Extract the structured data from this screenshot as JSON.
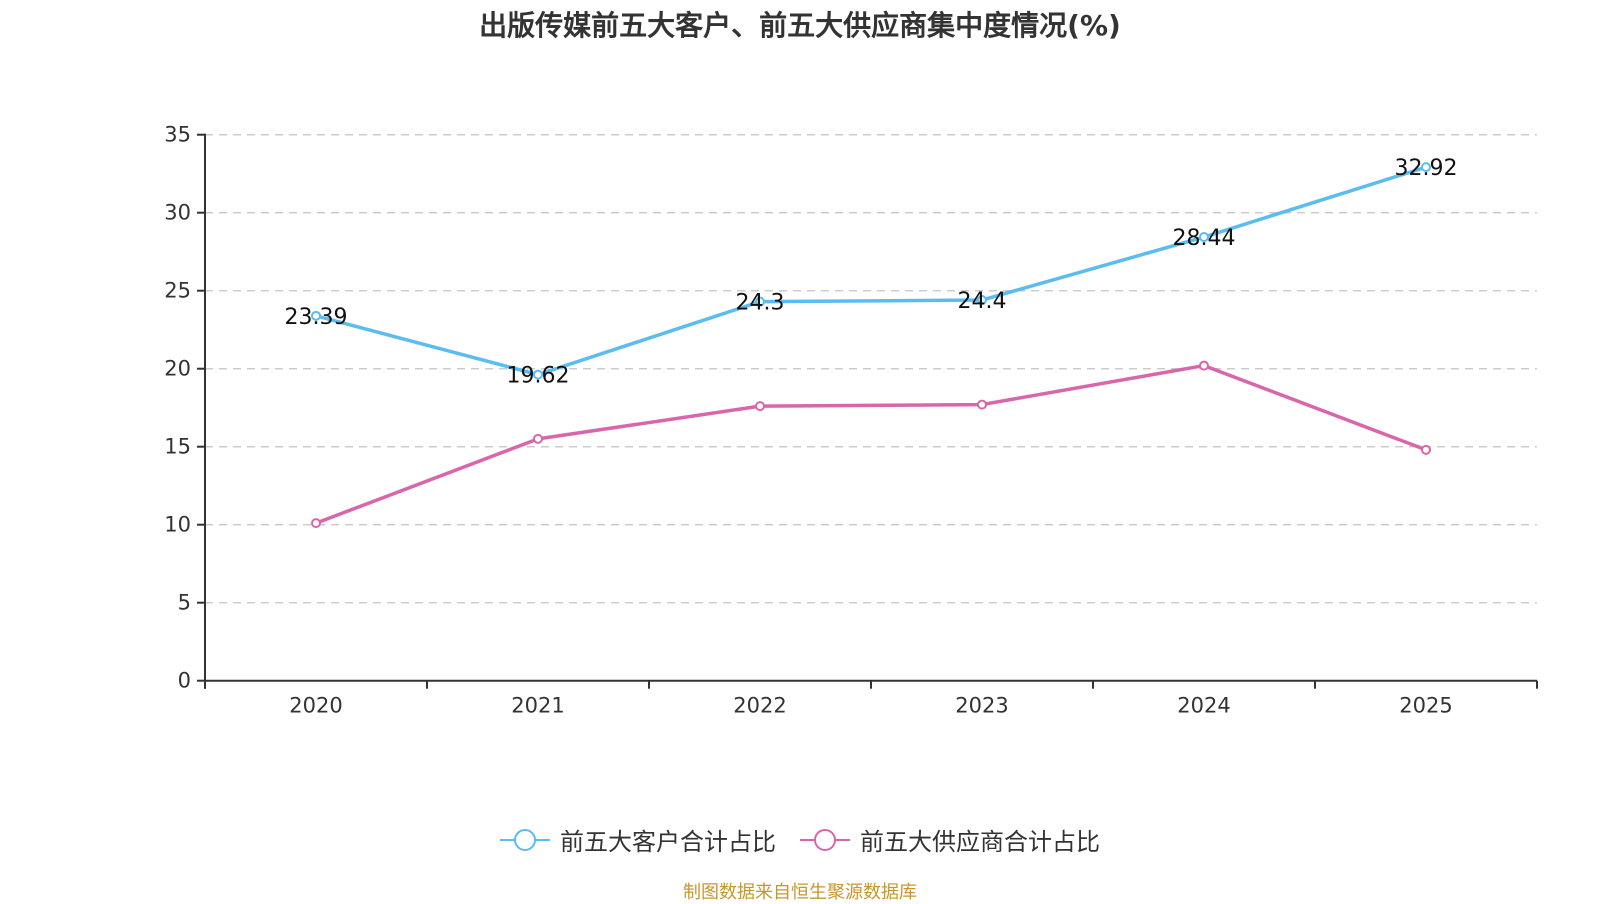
{
  "title": "出版传媒前五大客户、前五大供应商集中度情况(%)",
  "source": "制图数据来自恒生聚源数据库",
  "legend": [
    {
      "label": "前五大客户合计占比",
      "color": "#5bbcf0",
      "icon": "circle-line-icon"
    },
    {
      "label": "前五大供应商合计占比",
      "color": "#d966ab",
      "icon": "circle-line-icon"
    }
  ],
  "chart_data": {
    "type": "line",
    "title": "出版传媒前五大客户、前五大供应商集中度情况(%)",
    "xlabel": "",
    "ylabel": "",
    "categories": [
      "2020",
      "2021",
      "2022",
      "2023",
      "2024",
      "2025"
    ],
    "ylim": [
      0,
      35
    ],
    "yticks": [
      0,
      5,
      10,
      15,
      20,
      25,
      30,
      35
    ],
    "grid": true,
    "legend_position": "bottom-center",
    "series": [
      {
        "name": "前五大客户合计占比",
        "color": "#5bbcf0",
        "values": [
          23.39,
          19.62,
          24.3,
          24.4,
          28.44,
          32.92
        ],
        "labels": [
          "23.39",
          "19.62",
          "24.3",
          "24.4",
          "28.44",
          "32.92"
        ],
        "show_labels": true
      },
      {
        "name": "前五大供应商合计占比",
        "color": "#d966ab",
        "values": [
          10.1,
          15.5,
          17.6,
          17.7,
          20.2,
          14.8
        ],
        "show_labels": false
      }
    ]
  }
}
